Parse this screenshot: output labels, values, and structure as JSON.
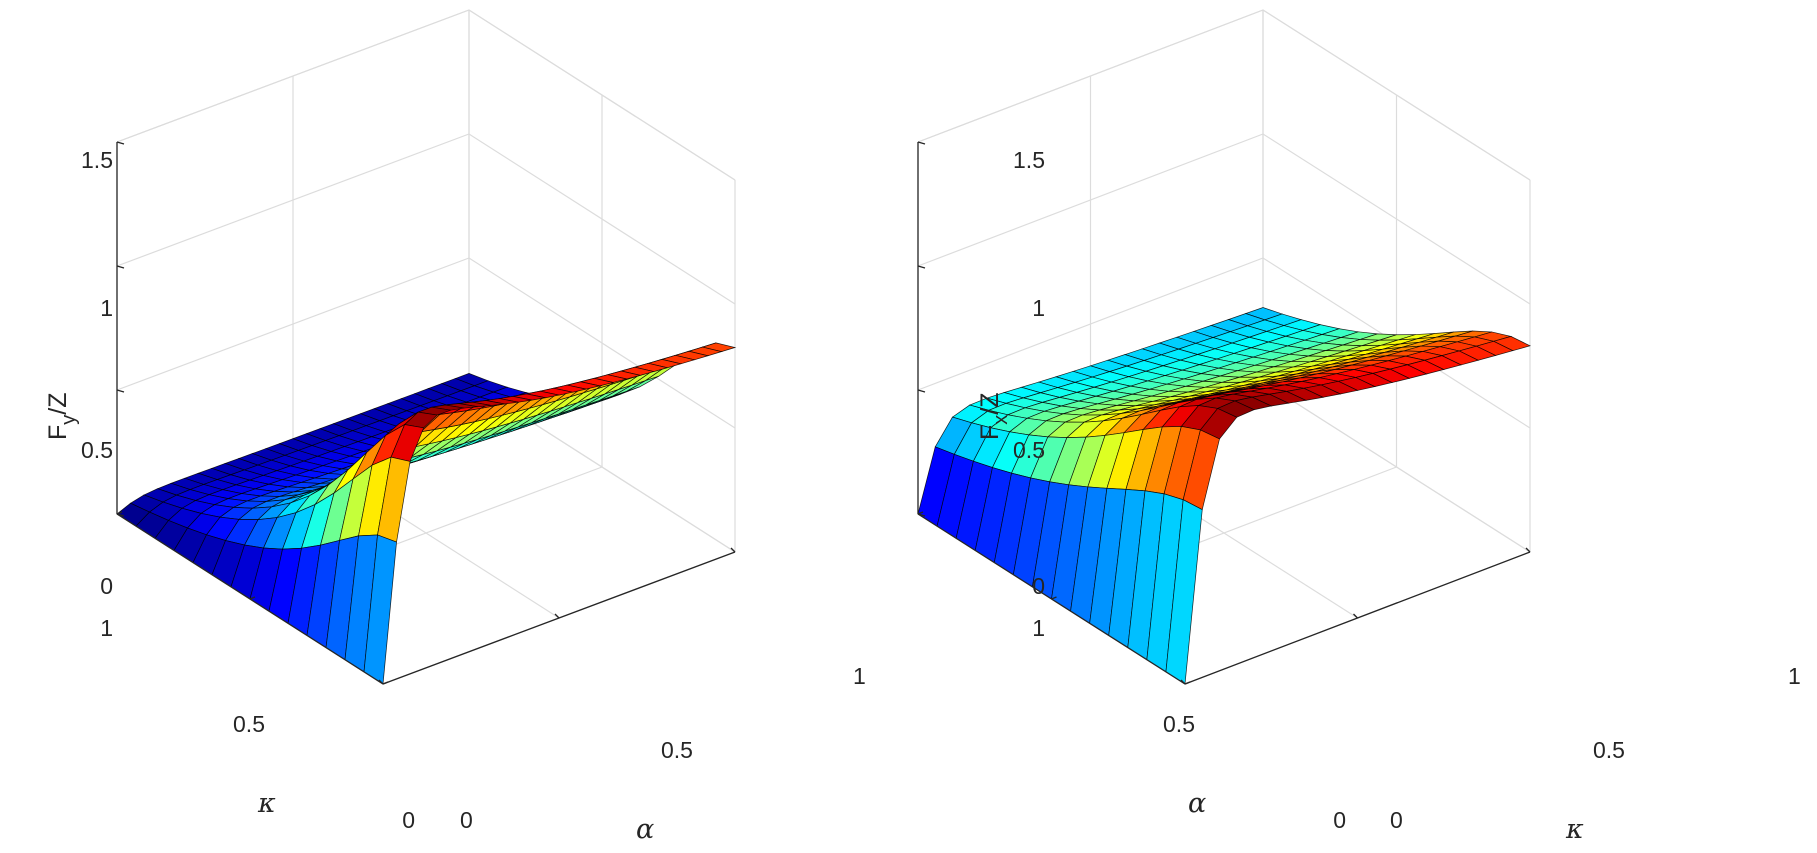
{
  "chart_data": [
    {
      "type": "surface",
      "title": "",
      "zlabel": {
        "main": "F",
        "sub": "y",
        "tail": "/Z"
      },
      "ylabel_left": "κ",
      "xlabel_right": "α",
      "zlim": [
        0,
        1.5
      ],
      "z_ticks": [
        "0",
        "0.5",
        "1",
        "1.5"
      ],
      "left_axis_ticks": [
        "0",
        "0.5",
        "1"
      ],
      "right_axis_ticks": [
        "0",
        "0.5",
        "1"
      ],
      "grid": true,
      "colormap": "jet",
      "colors": {
        "low": "#00007f",
        "high": "#7f0000"
      },
      "surface_samples": {
        "description_axes": [
          "alpha",
          "kappa"
        ],
        "alpha": [
          0,
          0.25,
          0.5,
          0.75,
          1
        ],
        "rows_by_kappa": {
          "0": [
            0.0,
            0.6,
            0.55,
            0.5,
            0.47
          ],
          "0.5": [
            0.0,
            0.6,
            0.55,
            0.5,
            0.47
          ],
          "1": [
            0.0,
            0.0,
            0.0,
            0.0,
            0.0
          ]
        }
      }
    },
    {
      "type": "surface",
      "title": "",
      "zlabel": {
        "main": "F",
        "sub": "x",
        "tail": "/Z"
      },
      "ylabel_left": "α",
      "xlabel_right": "κ",
      "zlim": [
        0,
        1.5
      ],
      "z_ticks": [
        "0",
        "0.5",
        "1",
        "1.5"
      ],
      "left_axis_ticks": [
        "0",
        "0.5",
        "1"
      ],
      "right_axis_ticks": [
        "0",
        "0.5",
        "1"
      ],
      "grid": true,
      "colormap": "jet",
      "colors": {
        "low": "#00007f",
        "high": "#7f0000"
      },
      "surface_samples": {
        "description_axes": [
          "kappa",
          "alpha"
        ],
        "kappa": [
          0,
          0.25,
          0.5,
          0.75,
          1
        ],
        "rows_by_alpha": {
          "0": [
            0.0,
            0.95,
            0.85,
            0.75,
            0.7
          ],
          "0.5": [
            0.0,
            0.55,
            0.5,
            0.45,
            0.42
          ],
          "1": [
            0.0,
            0.0,
            0.0,
            0.0,
            0.0
          ]
        }
      }
    }
  ]
}
